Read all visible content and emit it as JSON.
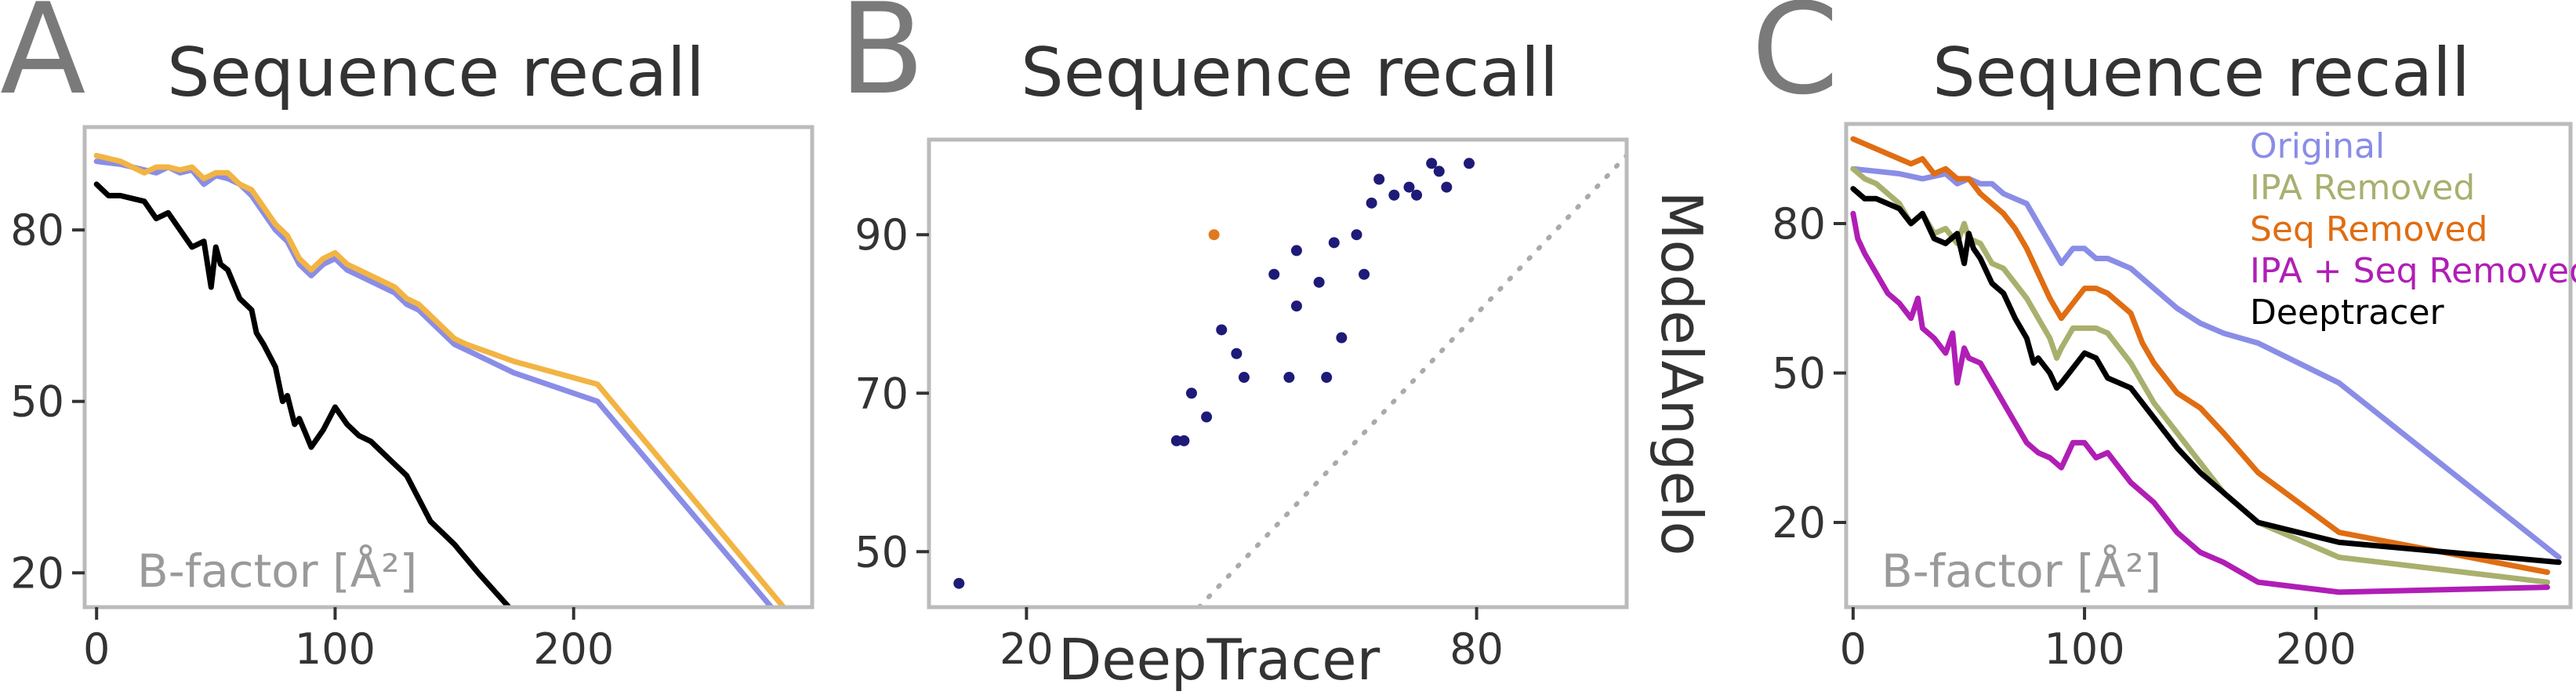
{
  "panel_letters": [
    "A",
    "B",
    "C"
  ],
  "colors": {
    "original": "#8a8de6",
    "orange_A": "#f2b443",
    "deeptracer": "#000000",
    "scatter_main": "#1e1a78",
    "scatter_highlight": "#e07a1f",
    "ipa_removed": "#a9b06e",
    "seq_removed": "#e06d12",
    "ipa_seq_removed": "#b01eb5",
    "frame": "#bbbbbb",
    "diagonal": "#aaaaaa"
  },
  "chart_data": [
    {
      "panel": "A",
      "type": "line",
      "title": "Sequence recall",
      "xlabel": "B-factor [Å²]",
      "ylabel": "",
      "xlim": [
        -5,
        300
      ],
      "ylim": [
        14,
        98
      ],
      "xticks": [
        0,
        100,
        200
      ],
      "yticks": [
        20,
        50,
        80
      ],
      "series": [
        {
          "key": "original",
          "color": "#8a8de6",
          "x": [
            0,
            10,
            20,
            25,
            30,
            35,
            40,
            45,
            50,
            55,
            60,
            65,
            70,
            75,
            80,
            85,
            90,
            95,
            100,
            105,
            110,
            120,
            125,
            130,
            135,
            140,
            145,
            150,
            155,
            175,
            210,
            295
          ],
          "y": [
            92,
            91.5,
            90.5,
            90,
            91,
            90,
            90.5,
            88,
            89.5,
            89,
            88,
            86,
            83,
            80,
            78,
            74,
            72,
            74,
            75,
            73,
            72,
            70,
            69,
            67,
            66,
            64,
            62,
            60,
            59,
            55,
            50,
            8
          ]
        },
        {
          "key": "orange",
          "color": "#f2b443",
          "x": [
            0,
            10,
            20,
            25,
            30,
            35,
            40,
            45,
            50,
            55,
            60,
            65,
            70,
            75,
            80,
            85,
            90,
            95,
            100,
            105,
            110,
            120,
            125,
            130,
            135,
            140,
            145,
            150,
            155,
            175,
            210,
            300
          ],
          "y": [
            93,
            92,
            90,
            91,
            91,
            90.5,
            91,
            89,
            90,
            90,
            88,
            87,
            84,
            81,
            79,
            75,
            73,
            75,
            76,
            74,
            73,
            71,
            70,
            68,
            67,
            65,
            63,
            61,
            60,
            57,
            53,
            8
          ]
        },
        {
          "key": "deeptracer",
          "color": "#000000",
          "x": [
            0,
            5,
            10,
            20,
            25,
            30,
            35,
            40,
            45,
            48,
            50,
            52,
            55,
            60,
            65,
            67,
            70,
            75,
            78,
            80,
            83,
            85,
            88,
            90,
            95,
            100,
            105,
            110,
            115,
            120,
            130,
            140,
            150,
            160,
            175,
            210,
            300
          ],
          "y": [
            88,
            86,
            86,
            85,
            82,
            83,
            80,
            77,
            78,
            70,
            77,
            74,
            73,
            68,
            66,
            62,
            60,
            56,
            50,
            51,
            46,
            47,
            44,
            42,
            45,
            49,
            46,
            44,
            43,
            41,
            37,
            29,
            25,
            20,
            13,
            6,
            -3
          ]
        }
      ]
    },
    {
      "panel": "B",
      "type": "scatter",
      "title": "Sequence recall",
      "xlabel": "DeepTracer",
      "ylabel": "ModelAngelo",
      "xlim": [
        7,
        100
      ],
      "ylim": [
        43,
        102
      ],
      "xticks": [
        20,
        80
      ],
      "yticks": [
        50,
        70,
        90
      ],
      "diagonal": true,
      "points": [
        {
          "x": 11,
          "y": 46,
          "color": "#1e1a78"
        },
        {
          "x": 45,
          "y": 90,
          "color": "#e07a1f"
        },
        {
          "x": 40,
          "y": 64,
          "color": "#1e1a78"
        },
        {
          "x": 41,
          "y": 64,
          "color": "#1e1a78"
        },
        {
          "x": 42,
          "y": 70,
          "color": "#1e1a78"
        },
        {
          "x": 44,
          "y": 67,
          "color": "#1e1a78"
        },
        {
          "x": 46,
          "y": 78,
          "color": "#1e1a78"
        },
        {
          "x": 48,
          "y": 75,
          "color": "#1e1a78"
        },
        {
          "x": 49,
          "y": 72,
          "color": "#1e1a78"
        },
        {
          "x": 53,
          "y": 85,
          "color": "#1e1a78"
        },
        {
          "x": 55,
          "y": 72,
          "color": "#1e1a78"
        },
        {
          "x": 56,
          "y": 81,
          "color": "#1e1a78"
        },
        {
          "x": 56,
          "y": 88,
          "color": "#1e1a78"
        },
        {
          "x": 59,
          "y": 84,
          "color": "#1e1a78"
        },
        {
          "x": 60,
          "y": 72,
          "color": "#1e1a78"
        },
        {
          "x": 61,
          "y": 89,
          "color": "#1e1a78"
        },
        {
          "x": 62,
          "y": 77,
          "color": "#1e1a78"
        },
        {
          "x": 64,
          "y": 90,
          "color": "#1e1a78"
        },
        {
          "x": 65,
          "y": 85,
          "color": "#1e1a78"
        },
        {
          "x": 66,
          "y": 94,
          "color": "#1e1a78"
        },
        {
          "x": 67,
          "y": 97,
          "color": "#1e1a78"
        },
        {
          "x": 69,
          "y": 95,
          "color": "#1e1a78"
        },
        {
          "x": 71,
          "y": 96,
          "color": "#1e1a78"
        },
        {
          "x": 72,
          "y": 95,
          "color": "#1e1a78"
        },
        {
          "x": 74,
          "y": 99,
          "color": "#1e1a78"
        },
        {
          "x": 75,
          "y": 98,
          "color": "#1e1a78"
        },
        {
          "x": 76,
          "y": 96,
          "color": "#1e1a78"
        },
        {
          "x": 79,
          "y": 99,
          "color": "#1e1a78"
        }
      ]
    },
    {
      "panel": "C",
      "type": "line",
      "title": "Sequence recall",
      "xlabel": "B-factor [Å²]",
      "ylabel": "",
      "xlim": [
        -3,
        310
      ],
      "ylim": [
        3,
        100
      ],
      "xticks": [
        0,
        100,
        200
      ],
      "yticks": [
        20,
        50,
        80
      ],
      "legend_position": "top-right",
      "series": [
        {
          "key": "original",
          "name": "Original",
          "color": "#8a8de6",
          "x": [
            0,
            10,
            20,
            30,
            40,
            45,
            50,
            55,
            60,
            65,
            70,
            75,
            80,
            85,
            90,
            95,
            100,
            105,
            110,
            120,
            130,
            140,
            150,
            160,
            175,
            210,
            305
          ],
          "y": [
            91,
            90.5,
            90,
            89,
            90,
            88,
            89,
            88,
            88,
            86,
            85,
            84,
            80,
            76,
            72,
            75,
            75,
            73,
            73,
            71,
            67,
            63,
            60,
            58,
            56,
            48,
            13
          ]
        },
        {
          "key": "seq_removed",
          "name": "Seq Removed",
          "color": "#e06d12",
          "x": [
            0,
            10,
            20,
            25,
            30,
            35,
            40,
            45,
            50,
            55,
            60,
            65,
            70,
            75,
            80,
            85,
            90,
            95,
            100,
            105,
            110,
            120,
            125,
            130,
            140,
            150,
            160,
            175,
            210,
            300
          ],
          "y": [
            97,
            95,
            93,
            92,
            93,
            90,
            91,
            89,
            89,
            86,
            84,
            82,
            79,
            75,
            70,
            65,
            61,
            64,
            67,
            67,
            66,
            62,
            56,
            52,
            46,
            43,
            38,
            30,
            18,
            10
          ]
        },
        {
          "key": "ipa_removed",
          "name": "IPA Removed",
          "color": "#a9b06e",
          "x": [
            0,
            5,
            10,
            15,
            20,
            25,
            30,
            35,
            40,
            45,
            48,
            50,
            55,
            60,
            65,
            70,
            75,
            80,
            85,
            88,
            90,
            95,
            100,
            105,
            110,
            120,
            130,
            140,
            150,
            160,
            175,
            210,
            300
          ],
          "y": [
            91,
            89,
            88,
            86,
            84,
            80,
            82,
            78,
            79,
            76,
            80,
            77,
            76,
            72,
            71,
            68,
            65,
            61,
            57,
            53,
            55,
            59,
            59,
            59,
            58,
            52,
            44,
            38,
            32,
            26,
            20,
            13,
            8
          ]
        },
        {
          "key": "deeptracer",
          "name": "Deeptracer",
          "color": "#000000",
          "x": [
            0,
            5,
            10,
            20,
            25,
            30,
            35,
            40,
            45,
            48,
            50,
            52,
            55,
            60,
            65,
            70,
            75,
            78,
            80,
            85,
            88,
            90,
            95,
            100,
            105,
            110,
            115,
            120,
            130,
            140,
            150,
            160,
            175,
            210,
            305
          ],
          "y": [
            87,
            85,
            85,
            83,
            80,
            82,
            77,
            76,
            78,
            72,
            78,
            75,
            73,
            68,
            66,
            61,
            57,
            52,
            53,
            50,
            47,
            48,
            51,
            54,
            53,
            49,
            48,
            47,
            41,
            35,
            30,
            26,
            20,
            16,
            12
          ]
        },
        {
          "key": "ipa_seq_removed",
          "name": "IPA + Seq Removed",
          "color": "#b01eb5",
          "x": [
            0,
            2,
            5,
            10,
            15,
            20,
            25,
            28,
            30,
            35,
            40,
            43,
            45,
            48,
            50,
            55,
            60,
            65,
            70,
            75,
            80,
            85,
            90,
            95,
            100,
            105,
            110,
            120,
            130,
            140,
            150,
            160,
            175,
            210,
            300
          ],
          "y": [
            82,
            77,
            74,
            70,
            66,
            64,
            61,
            65,
            59,
            57,
            54,
            58,
            48,
            55,
            53,
            52,
            48,
            44,
            40,
            36,
            34,
            33,
            31,
            36,
            36,
            33,
            34,
            28,
            24,
            18,
            14,
            12,
            8,
            6,
            7
          ]
        }
      ]
    }
  ]
}
